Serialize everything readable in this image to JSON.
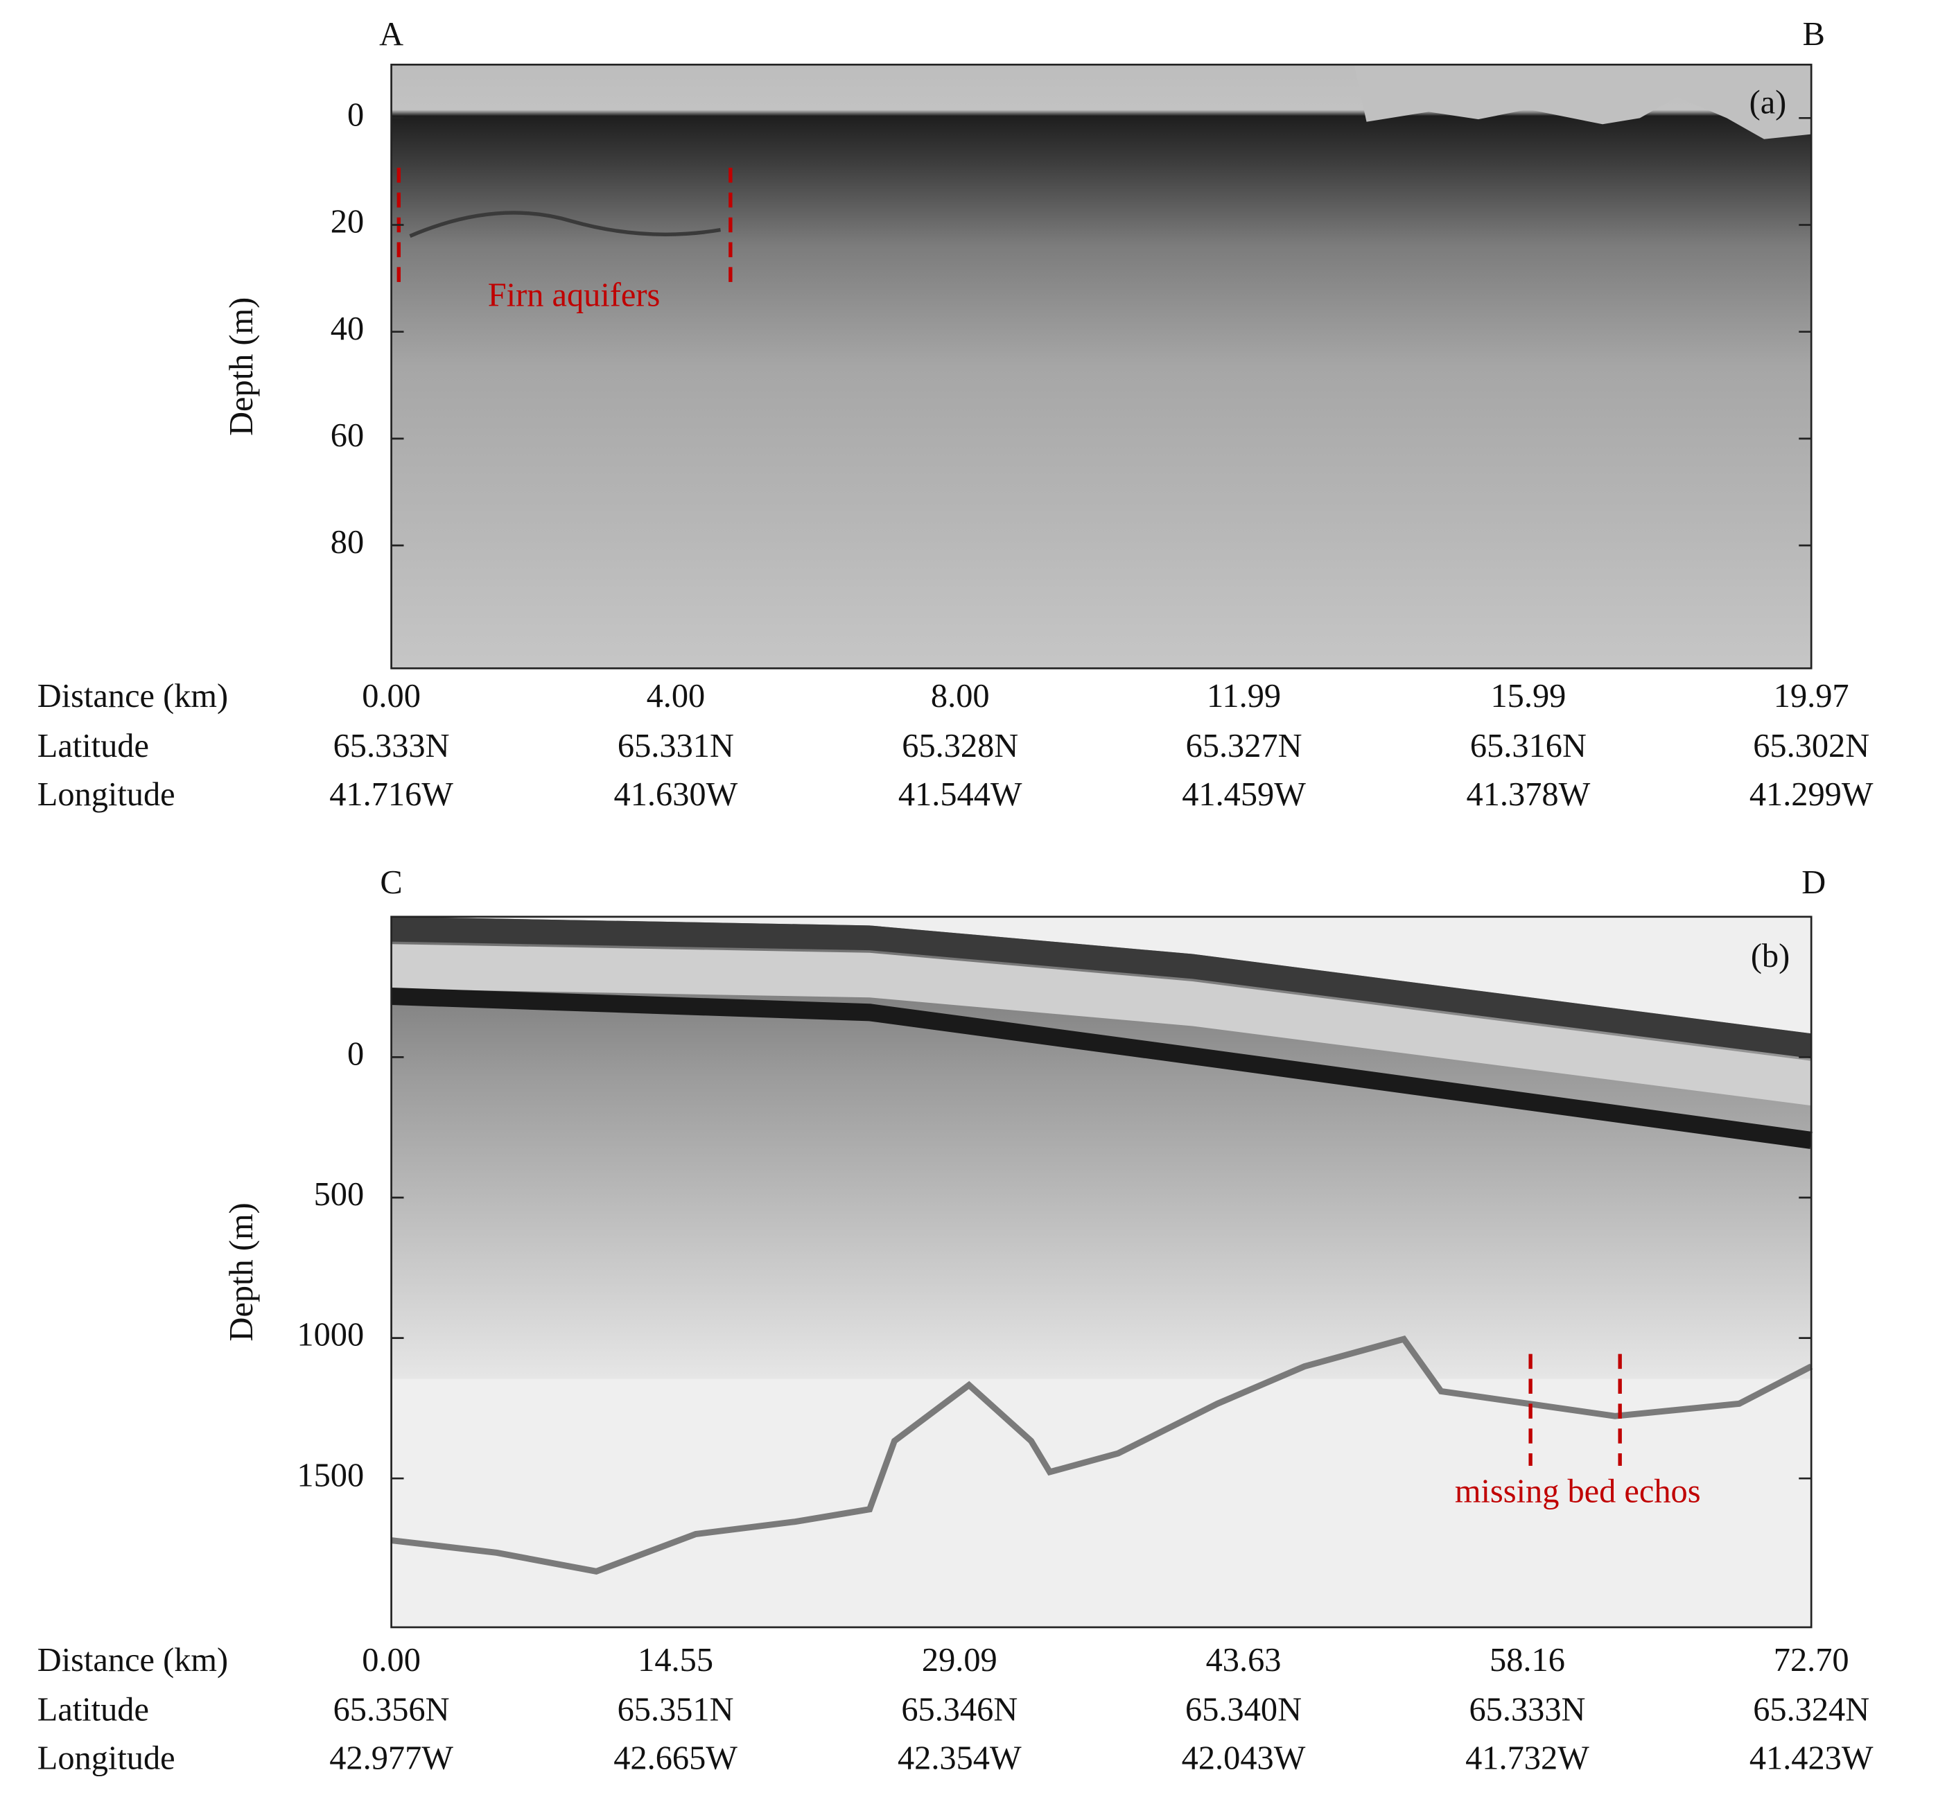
{
  "chart_data": [
    {
      "type": "radargram",
      "panel_label": "(a)",
      "start_label": "A",
      "end_label": "B",
      "ylabel": "Depth (m)",
      "ylim": [
        -10,
        103
      ],
      "yticks": [
        0,
        20,
        40,
        60,
        80
      ],
      "inverted": true,
      "xlabel": "Distance (km)",
      "xlim": [
        0,
        19.97
      ],
      "xticks": [
        {
          "value": 0,
          "label": "0.00"
        },
        {
          "value": 4,
          "label": "4.00"
        },
        {
          "value": 8,
          "label": "8.00"
        },
        11.99,
        15.99,
        19.97
      ],
      "latitude_label": "Latitude",
      "latitudes": [
        "65.333N",
        "65.331N",
        "65.328N",
        "65.327N",
        "65.316N",
        "65.302N"
      ],
      "longitude_label": "Longitude",
      "longitudes": [
        "41.716W",
        "41.630W",
        "41.544W",
        "41.459W",
        "41.378W",
        "41.299W"
      ],
      "annotation": {
        "text": "Firn aquifers",
        "color": "#c00000"
      }
    },
    {
      "type": "radargram",
      "panel_label": "(b)",
      "start_label": "C",
      "end_label": "D",
      "ylabel": "Depth (m)",
      "ylim": [
        -500,
        2030
      ],
      "yticks": [
        0,
        500,
        1000,
        1500
      ],
      "inverted": true,
      "xlabel": "Distance (km)",
      "xlim": [
        0,
        72.7
      ],
      "xticks": [
        {
          "value": 0,
          "label": "0.00"
        },
        14.55,
        29.09,
        43.63,
        58.16,
        {
          "value": 72.7,
          "label": "72.70"
        }
      ],
      "latitude_label": "Latitude",
      "latitudes": [
        "65.356N",
        "65.351N",
        "65.346N",
        "65.340N",
        "65.333N",
        "65.324N"
      ],
      "longitude_label": "Longitude",
      "longitudes": [
        "42.977W",
        "42.665W",
        "42.354W",
        "42.043W",
        "41.732W",
        "41.423W"
      ],
      "annotation": {
        "text": "missing bed echos",
        "color": "#c00000"
      }
    }
  ]
}
